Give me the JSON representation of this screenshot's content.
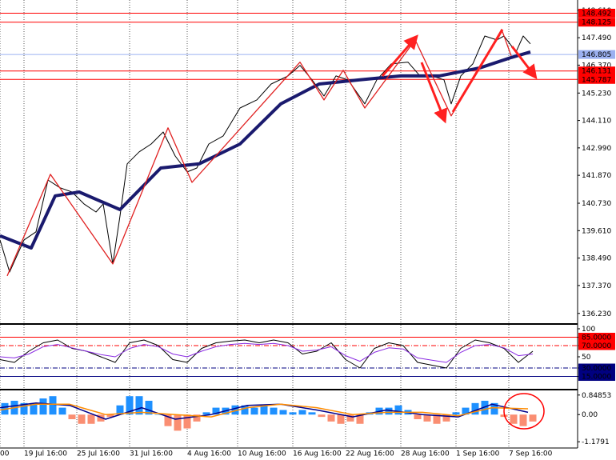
{
  "chart_data": [
    {
      "type": "line",
      "xlim": [
        0,
        240
      ],
      "ylim": [
        135.83,
        149.03
      ],
      "yticks": [
        {
          "value": 148.61,
          "label": "148.610"
        },
        {
          "value": 147.49,
          "label": "147.490"
        },
        {
          "value": 146.37,
          "label": "146.370"
        },
        {
          "value": 145.23,
          "label": "145.230"
        },
        {
          "value": 144.11,
          "label": "144.110"
        },
        {
          "value": 142.99,
          "label": "142.990"
        },
        {
          "value": 141.87,
          "label": "141.870"
        },
        {
          "value": 140.73,
          "label": "140.730"
        },
        {
          "value": 139.61,
          "label": "139.610"
        },
        {
          "value": 138.49,
          "label": "138.490"
        },
        {
          "value": 137.37,
          "label": "137.370"
        },
        {
          "value": 136.23,
          "label": "136.230"
        }
      ],
      "levels": [
        {
          "value": 148.492,
          "color": "#ff0000"
        },
        {
          "value": 148.125,
          "color": "#ff0000"
        },
        {
          "value": 146.805,
          "color": "#9bb0f0"
        },
        {
          "value": 146.131,
          "color": "#ff0000"
        },
        {
          "value": 145.787,
          "color": "#ff0000"
        }
      ],
      "series": [
        {
          "color": "#000000",
          "width": 1,
          "x": [
            0,
            4,
            10,
            15,
            20,
            25,
            30,
            35,
            40,
            43,
            47,
            50,
            53,
            58,
            63,
            68,
            73,
            78,
            82,
            87,
            93,
            100,
            107,
            113,
            120,
            125,
            130,
            135,
            140,
            145,
            152,
            157,
            163,
            170,
            175,
            180,
            185,
            188,
            192,
            197,
            202,
            207,
            210,
            215,
            218,
            221
          ],
          "values": [
            139.23,
            137.92,
            139.23,
            139.56,
            141.68,
            141.36,
            141.19,
            140.7,
            140.37,
            140.7,
            138.25,
            140.21,
            142.34,
            142.83,
            143.15,
            143.64,
            142.66,
            142.01,
            142.17,
            143.15,
            143.48,
            144.62,
            144.95,
            145.6,
            145.93,
            146.36,
            145.77,
            145.11,
            145.93,
            145.77,
            144.79,
            145.77,
            146.42,
            146.49,
            145.93,
            145.93,
            145.77,
            144.79,
            145.93,
            146.42,
            147.56,
            147.4,
            147.56,
            146.91,
            147.56,
            147.24
          ]
        },
        {
          "color": "#1a1a6e",
          "width": 4,
          "x": [
            0,
            13,
            23,
            33,
            50,
            67,
            83,
            100,
            117,
            133,
            150,
            167,
            183,
            200,
            213,
            221
          ],
          "values": [
            139.4,
            138.9,
            141.03,
            141.19,
            140.47,
            142.17,
            142.34,
            143.15,
            144.79,
            145.6,
            145.77,
            145.93,
            145.93,
            146.26,
            146.68,
            146.91
          ]
        },
        {
          "color": "#e02020",
          "width": 1.3,
          "x": [
            3,
            21,
            47,
            70,
            80,
            125,
            135,
            143,
            152,
            173,
            188,
            209,
            213
          ],
          "values": [
            137.76,
            141.91,
            138.25,
            143.81,
            141.58,
            146.49,
            144.95,
            146.16,
            144.62,
            147.4,
            144.3,
            147.83,
            146.75
          ]
        }
      ]
    },
    {
      "type": "line",
      "xlim": [
        0,
        240
      ],
      "ylim": [
        -7.1,
        107.1
      ],
      "yticks": [
        100,
        {
          "value": 85,
          "label": "85.0000",
          "color": "#ff0000"
        },
        {
          "value": 70,
          "label": "70.0000",
          "color": "#ff0000",
          "dash": true
        },
        50,
        {
          "value": 30,
          "label": "30.0000",
          "color": "#000080",
          "dash": true
        },
        {
          "value": 15,
          "label": "15.0000",
          "color": "#000080"
        }
      ],
      "series": [
        {
          "color": "#000000",
          "width": 1,
          "x": [
            0,
            6,
            12,
            18,
            24,
            30,
            36,
            42,
            48,
            54,
            60,
            66,
            72,
            78,
            84,
            90,
            96,
            102,
            108,
            114,
            120,
            126,
            132,
            138,
            144,
            150,
            156,
            162,
            168,
            174,
            180,
            186,
            192,
            198,
            204,
            210,
            216,
            222
          ],
          "values": [
            45,
            40,
            60,
            75,
            80,
            65,
            60,
            50,
            40,
            75,
            80,
            70,
            45,
            40,
            65,
            75,
            78,
            80,
            75,
            80,
            75,
            55,
            60,
            75,
            45,
            30,
            65,
            75,
            70,
            40,
            35,
            30,
            65,
            80,
            75,
            65,
            40,
            60
          ]
        },
        {
          "color": "#8a2be2",
          "width": 1,
          "x": [
            0,
            6,
            12,
            18,
            24,
            30,
            36,
            42,
            48,
            54,
            60,
            66,
            72,
            78,
            84,
            90,
            96,
            102,
            108,
            114,
            120,
            126,
            132,
            138,
            144,
            150,
            156,
            162,
            168,
            174,
            180,
            186,
            192,
            198,
            204,
            210,
            216,
            222
          ],
          "values": [
            50,
            48,
            55,
            68,
            72,
            66,
            60,
            54,
            50,
            65,
            72,
            68,
            55,
            50,
            60,
            68,
            72,
            74,
            72,
            74,
            70,
            60,
            62,
            68,
            52,
            42,
            58,
            66,
            64,
            48,
            44,
            40,
            58,
            70,
            72,
            66,
            52,
            55
          ]
        }
      ]
    },
    {
      "type": "bar",
      "xlim": [
        0,
        240
      ],
      "ylim": [
        -1.45,
        1.05
      ],
      "yticks": [
        0.84853,
        {
          "value": 0,
          "label": "0.00"
        },
        -1.1791
      ],
      "xticks": [
        {
          "value": 0,
          "label": "00"
        },
        {
          "value": 10,
          "label": "19 Jul 16:00"
        },
        {
          "value": 32,
          "label": "25 Jul 16:00"
        },
        {
          "value": 54,
          "label": "31 Jul 16:00"
        },
        {
          "value": 78,
          "label": "4 Aug 16:00"
        },
        {
          "value": 99,
          "label": "10 Aug 16:00"
        },
        {
          "value": 122,
          "label": "16 Aug 16:00"
        },
        {
          "value": 144,
          "label": "22 Aug 16:00"
        },
        {
          "value": 167,
          "label": "28 Aug 16:00"
        },
        {
          "value": 190,
          "label": "1 Sep 16:00"
        },
        {
          "value": 212,
          "label": "7 Sep 16:00"
        }
      ],
      "positive_color": "#1e90ff",
      "negative_color": "#fa8e72",
      "x": [
        2,
        6,
        10,
        14,
        18,
        22,
        26,
        30,
        34,
        38,
        42,
        46,
        50,
        54,
        58,
        62,
        66,
        70,
        74,
        78,
        82,
        86,
        90,
        94,
        98,
        102,
        106,
        110,
        114,
        118,
        122,
        126,
        130,
        134,
        138,
        142,
        146,
        150,
        154,
        158,
        162,
        166,
        170,
        174,
        178,
        182,
        186,
        190,
        194,
        198,
        202,
        206,
        210,
        214,
        218,
        222
      ],
      "values": [
        0.5,
        0.6,
        0.5,
        0.5,
        0.7,
        0.8,
        0.3,
        -0.2,
        -0.4,
        -0.4,
        -0.3,
        -0.1,
        0.4,
        0.8,
        0.8,
        0.6,
        0.0,
        -0.5,
        -0.7,
        -0.6,
        -0.3,
        0.1,
        0.3,
        0.3,
        0.4,
        0.4,
        0.3,
        0.4,
        0.3,
        0.2,
        0.1,
        0.2,
        0.1,
        -0.1,
        -0.3,
        -0.4,
        -0.3,
        -0.4,
        0.1,
        0.3,
        0.3,
        0.4,
        0.2,
        -0.2,
        -0.3,
        -0.4,
        -0.3,
        0.1,
        0.3,
        0.5,
        0.6,
        0.5,
        -0.1,
        -0.4,
        -0.5,
        -0.3
      ],
      "series": [
        {
          "color": "#00008b",
          "width": 1.5,
          "x": [
            0,
            15,
            29,
            44,
            59,
            73,
            88,
            103,
            117,
            132,
            147,
            161,
            176,
            191,
            205,
            220
          ],
          "values": [
            0.3,
            0.5,
            0.4,
            -0.2,
            0.3,
            -0.2,
            0.0,
            0.4,
            0.45,
            0.2,
            -0.1,
            0.2,
            0.0,
            -0.1,
            0.45,
            0.1
          ]
        },
        {
          "color": "#ff8c00",
          "width": 1.5,
          "x": [
            0,
            15,
            29,
            44,
            59,
            73,
            88,
            103,
            117,
            132,
            147,
            161,
            176,
            191,
            205,
            220
          ],
          "values": [
            0.2,
            0.45,
            0.45,
            0.0,
            0.1,
            0.0,
            -0.1,
            0.3,
            0.45,
            0.3,
            0.0,
            0.1,
            0.1,
            -0.05,
            0.3,
            0.25
          ]
        }
      ]
    }
  ]
}
